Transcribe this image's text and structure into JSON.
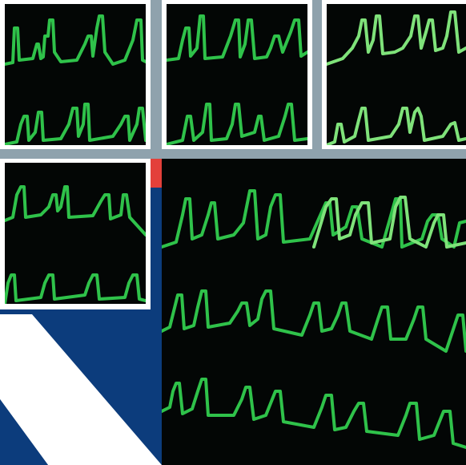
{
  "image": {
    "subject": "ecg-trace-collage",
    "panels": [
      {
        "name": "thumb-1"
      },
      {
        "name": "thumb-2"
      },
      {
        "name": "thumb-3"
      },
      {
        "name": "thumb-4"
      },
      {
        "name": "main"
      }
    ]
  },
  "colors": {
    "border_gray": "#8fa2ad",
    "frame_white": "#ffffff",
    "screen_black": "#030605",
    "trace_green": "#2fc24a",
    "trace_green_light": "#7fe27a",
    "navy": "#0c3c7c",
    "accent_red": "#e3403a"
  }
}
